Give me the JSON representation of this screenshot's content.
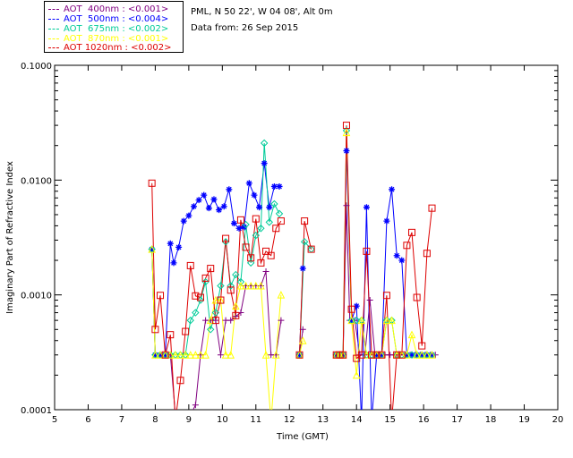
{
  "header": {
    "site": "PML, N 50 22', W 04 08', Alt 0m",
    "date": "Data from: 26 Sep 2015"
  },
  "chart_data": {
    "type": "line",
    "xlabel": "Time (GMT)",
    "ylabel": "Imaginary Part of Refractive Index",
    "xlim": [
      5,
      20
    ],
    "ylim": [
      0.0001,
      0.1
    ],
    "y_scale": "log",
    "x_ticks": [
      5,
      6,
      7,
      8,
      9,
      10,
      11,
      12,
      13,
      14,
      15,
      16,
      17,
      18,
      19,
      20
    ],
    "y_ticks": [
      {
        "value": 0.0001,
        "label": "0.0001"
      },
      {
        "value": 0.001,
        "label": "0.0010"
      },
      {
        "value": 0.01,
        "label": "0.0100"
      },
      {
        "value": 0.1,
        "label": "0.1000"
      }
    ],
    "legend_position": "top-left",
    "series": [
      {
        "name": "AOT  400nm : <0.001>",
        "color": "#800080",
        "marker": "plus",
        "segments": [
          [
            [
              7.9,
              0.0025
            ],
            [
              8.0,
              0.0003
            ],
            [
              8.15,
              0.0003
            ],
            [
              8.3,
              0.0003
            ],
            [
              8.45,
              0.0003
            ],
            [
              8.6,
              9e-05
            ],
            [
              8.75,
              9e-05
            ],
            [
              8.9,
              9e-05
            ],
            [
              9.05,
              9e-05
            ],
            [
              9.2,
              0.00011
            ],
            [
              9.35,
              0.0003
            ],
            [
              9.5,
              0.0006
            ],
            [
              9.65,
              0.0006
            ],
            [
              9.8,
              0.0006
            ],
            [
              9.95,
              0.0003
            ],
            [
              10.1,
              0.0006
            ],
            [
              10.25,
              0.0006
            ],
            [
              10.4,
              0.00065
            ],
            [
              10.55,
              0.0007
            ],
            [
              10.7,
              0.0012
            ],
            [
              10.85,
              0.0012
            ],
            [
              11.0,
              0.0012
            ],
            [
              11.15,
              0.0012
            ],
            [
              11.3,
              0.0016
            ],
            [
              11.45,
              0.0003
            ],
            [
              11.6,
              0.0003
            ],
            [
              11.75,
              0.0006
            ]
          ],
          [
            [
              12.3,
              0.0003
            ],
            [
              12.4,
              0.0005
            ]
          ],
          [
            [
              13.4,
              0.0003
            ],
            [
              13.5,
              0.0003
            ],
            [
              13.6,
              0.0003
            ],
            [
              13.7,
              0.006
            ],
            [
              13.8,
              0.0006
            ],
            [
              13.95,
              0.0006
            ],
            [
              14.1,
              0.0003
            ],
            [
              14.25,
              0.0003
            ],
            [
              14.4,
              0.0009
            ],
            [
              14.55,
              0.0003
            ],
            [
              14.7,
              0.0003
            ],
            [
              14.85,
              0.0003
            ],
            [
              15.0,
              0.0003
            ],
            [
              15.15,
              0.0003
            ],
            [
              15.3,
              0.0003
            ],
            [
              15.45,
              0.0003
            ],
            [
              15.6,
              0.0003
            ],
            [
              15.75,
              0.0003
            ],
            [
              15.9,
              0.0003
            ],
            [
              16.05,
              0.0003
            ],
            [
              16.2,
              0.0003
            ],
            [
              16.35,
              0.0003
            ]
          ]
        ]
      },
      {
        "name": "AOT  500nm : <0.004>",
        "color": "#0000ff",
        "marker": "asterisk",
        "segments": [
          [
            [
              7.9,
              0.0025
            ],
            [
              8.0,
              0.0003
            ],
            [
              8.15,
              0.0003
            ],
            [
              8.3,
              0.0003
            ],
            [
              8.45,
              0.0028
            ],
            [
              8.55,
              0.0019
            ],
            [
              8.7,
              0.0026
            ],
            [
              8.85,
              0.0044
            ],
            [
              9.0,
              0.0049
            ],
            [
              9.15,
              0.0059
            ],
            [
              9.3,
              0.0067
            ],
            [
              9.45,
              0.0074
            ],
            [
              9.6,
              0.0057
            ],
            [
              9.75,
              0.0068
            ],
            [
              9.9,
              0.0055
            ],
            [
              10.05,
              0.0059
            ],
            [
              10.2,
              0.0083
            ],
            [
              10.35,
              0.0042
            ],
            [
              10.5,
              0.0038
            ],
            [
              10.65,
              0.0039
            ],
            [
              10.8,
              0.0094
            ],
            [
              10.95,
              0.0074
            ],
            [
              11.1,
              0.0058
            ],
            [
              11.25,
              0.014
            ],
            [
              11.4,
              0.0058
            ],
            [
              11.55,
              0.0088
            ],
            [
              11.7,
              0.0088
            ]
          ],
          [
            [
              12.3,
              0.0003
            ],
            [
              12.4,
              0.0017
            ]
          ],
          [
            [
              13.4,
              0.0003
            ],
            [
              13.5,
              0.0003
            ],
            [
              13.6,
              0.0003
            ],
            [
              13.7,
              0.018
            ],
            [
              13.85,
              0.0006
            ],
            [
              14.0,
              0.0008
            ],
            [
              14.15,
              8e-05
            ],
            [
              14.3,
              0.0058
            ],
            [
              14.45,
              8e-05
            ],
            [
              14.6,
              0.0003
            ],
            [
              14.75,
              0.0003
            ],
            [
              14.9,
              0.0044
            ],
            [
              15.05,
              0.0083
            ],
            [
              15.2,
              0.0022
            ],
            [
              15.35,
              0.002
            ],
            [
              15.5,
              0.0003
            ],
            [
              15.65,
              0.0003
            ],
            [
              15.8,
              0.0003
            ],
            [
              15.95,
              0.0003
            ],
            [
              16.1,
              0.0003
            ],
            [
              16.25,
              0.0003
            ]
          ]
        ]
      },
      {
        "name": "AOT  675nm : <0.002>",
        "color": "#00cc99",
        "marker": "diamond",
        "segments": [
          [
            [
              7.9,
              0.0025
            ],
            [
              8.0,
              0.0003
            ],
            [
              8.15,
              0.0003
            ],
            [
              8.3,
              0.0003
            ],
            [
              8.45,
              0.0003
            ],
            [
              8.6,
              0.0003
            ],
            [
              8.75,
              0.0003
            ],
            [
              8.9,
              0.0003
            ],
            [
              9.05,
              0.0006
            ],
            [
              9.2,
              0.0007
            ],
            [
              9.35,
              0.0009
            ],
            [
              9.5,
              0.0013
            ],
            [
              9.65,
              0.0005
            ],
            [
              9.8,
              0.0007
            ],
            [
              9.95,
              0.0012
            ],
            [
              10.1,
              0.0029
            ],
            [
              10.25,
              0.0012
            ],
            [
              10.4,
              0.0015
            ],
            [
              10.55,
              0.0013
            ],
            [
              10.7,
              0.0041
            ],
            [
              10.85,
              0.0019
            ],
            [
              11.0,
              0.0033
            ],
            [
              11.15,
              0.0038
            ],
            [
              11.25,
              0.021
            ],
            [
              11.4,
              0.0043
            ],
            [
              11.55,
              0.0062
            ],
            [
              11.7,
              0.0051
            ]
          ],
          [
            [
              12.3,
              0.0003
            ],
            [
              12.45,
              0.0029
            ],
            [
              12.65,
              0.0025
            ]
          ],
          [
            [
              13.4,
              0.0003
            ],
            [
              13.5,
              0.0003
            ],
            [
              13.6,
              0.0003
            ],
            [
              13.7,
              0.027
            ],
            [
              13.85,
              0.0006
            ],
            [
              14.0,
              0.0006
            ],
            [
              14.15,
              0.0006
            ],
            [
              14.3,
              0.0003
            ],
            [
              14.45,
              0.0003
            ],
            [
              14.6,
              0.0003
            ],
            [
              14.75,
              0.0003
            ],
            [
              14.9,
              0.0006
            ],
            [
              15.05,
              0.0006
            ],
            [
              15.2,
              0.0003
            ],
            [
              15.35,
              0.0003
            ],
            [
              15.5,
              0.0003
            ],
            [
              15.65,
              0.0003
            ],
            [
              15.8,
              0.0003
            ],
            [
              15.95,
              0.0003
            ],
            [
              16.1,
              0.0003
            ],
            [
              16.25,
              0.0003
            ]
          ]
        ]
      },
      {
        "name": "AOT  870nm : <0.001>",
        "color": "#ffff00",
        "marker": "triangle",
        "segments": [
          [
            [
              7.9,
              0.0025
            ],
            [
              8.0,
              0.0003
            ],
            [
              8.15,
              0.0003
            ],
            [
              8.3,
              0.0003
            ],
            [
              8.45,
              0.0003
            ],
            [
              8.6,
              0.0003
            ],
            [
              8.75,
              0.0003
            ],
            [
              8.9,
              0.0003
            ],
            [
              9.05,
              0.0003
            ],
            [
              9.2,
              0.0003
            ],
            [
              9.35,
              0.0003
            ],
            [
              9.5,
              0.0003
            ],
            [
              9.65,
              0.0006
            ],
            [
              9.8,
              0.0009
            ],
            [
              9.95,
              0.0009
            ],
            [
              10.1,
              0.0003
            ],
            [
              10.25,
              0.0003
            ],
            [
              10.4,
              0.0008
            ],
            [
              10.55,
              0.0012
            ],
            [
              10.7,
              0.0012
            ],
            [
              10.85,
              0.0012
            ],
            [
              11.0,
              0.0012
            ],
            [
              11.15,
              0.0012
            ],
            [
              11.3,
              0.0003
            ],
            [
              11.45,
              8e-05
            ],
            [
              11.6,
              0.0003
            ],
            [
              11.75,
              0.001
            ]
          ],
          [
            [
              12.3,
              0.0003
            ],
            [
              12.4,
              0.0004
            ]
          ],
          [
            [
              13.4,
              0.0003
            ],
            [
              13.5,
              0.0003
            ],
            [
              13.6,
              0.0003
            ],
            [
              13.7,
              0.026
            ],
            [
              13.85,
              0.0006
            ],
            [
              14.0,
              0.0002
            ],
            [
              14.15,
              0.0006
            ],
            [
              14.3,
              0.0003
            ],
            [
              14.45,
              0.0003
            ],
            [
              14.6,
              0.0003
            ],
            [
              14.75,
              0.0003
            ],
            [
              14.9,
              0.0006
            ],
            [
              15.05,
              0.0006
            ],
            [
              15.2,
              0.0003
            ],
            [
              15.35,
              0.0003
            ],
            [
              15.5,
              0.0003
            ],
            [
              15.65,
              0.00045
            ],
            [
              15.8,
              0.0003
            ],
            [
              15.95,
              0.0003
            ],
            [
              16.1,
              0.0003
            ],
            [
              16.25,
              0.0003
            ]
          ]
        ]
      },
      {
        "name": "AOT 1020nm : <0.002>",
        "color": "#dd0000",
        "marker": "square",
        "segments": [
          [
            [
              7.9,
              0.0094
            ],
            [
              8.0,
              0.0005
            ],
            [
              8.15,
              0.00099
            ],
            [
              8.3,
              0.0003
            ],
            [
              8.45,
              0.00045
            ],
            [
              8.6,
              8e-05
            ],
            [
              8.75,
              0.00018
            ],
            [
              8.9,
              0.00048
            ],
            [
              9.05,
              0.0018
            ],
            [
              9.2,
              0.00098
            ],
            [
              9.35,
              0.00095
            ],
            [
              9.5,
              0.0014
            ],
            [
              9.65,
              0.0017
            ],
            [
              9.8,
              0.0006
            ],
            [
              9.95,
              0.0009
            ],
            [
              10.1,
              0.0031
            ],
            [
              10.25,
              0.0011
            ],
            [
              10.4,
              0.00066
            ],
            [
              10.55,
              0.0045
            ],
            [
              10.7,
              0.0026
            ],
            [
              10.85,
              0.0021
            ],
            [
              11.0,
              0.0046
            ],
            [
              11.15,
              0.0019
            ],
            [
              11.3,
              0.0024
            ],
            [
              11.45,
              0.0022
            ],
            [
              11.6,
              0.0038
            ],
            [
              11.75,
              0.0044
            ]
          ],
          [
            [
              12.3,
              0.0003
            ],
            [
              12.45,
              0.0044
            ],
            [
              12.65,
              0.0025
            ]
          ],
          [
            [
              13.4,
              0.0003
            ],
            [
              13.5,
              0.0003
            ],
            [
              13.6,
              0.0003
            ],
            [
              13.7,
              0.03
            ],
            [
              13.85,
              0.00075
            ],
            [
              14.0,
              0.00028
            ],
            [
              14.15,
              0.0003
            ],
            [
              14.3,
              0.0024
            ],
            [
              14.45,
              0.0003
            ],
            [
              14.6,
              0.0003
            ],
            [
              14.75,
              0.0003
            ],
            [
              14.9,
              0.00099
            ],
            [
              15.05,
              8e-05
            ],
            [
              15.2,
              0.0003
            ],
            [
              15.35,
              0.0003
            ],
            [
              15.5,
              0.0027
            ],
            [
              15.65,
              0.0035
            ],
            [
              15.8,
              0.00095
            ],
            [
              15.95,
              0.00036
            ],
            [
              16.1,
              0.0023
            ],
            [
              16.25,
              0.0057
            ]
          ]
        ]
      }
    ]
  }
}
